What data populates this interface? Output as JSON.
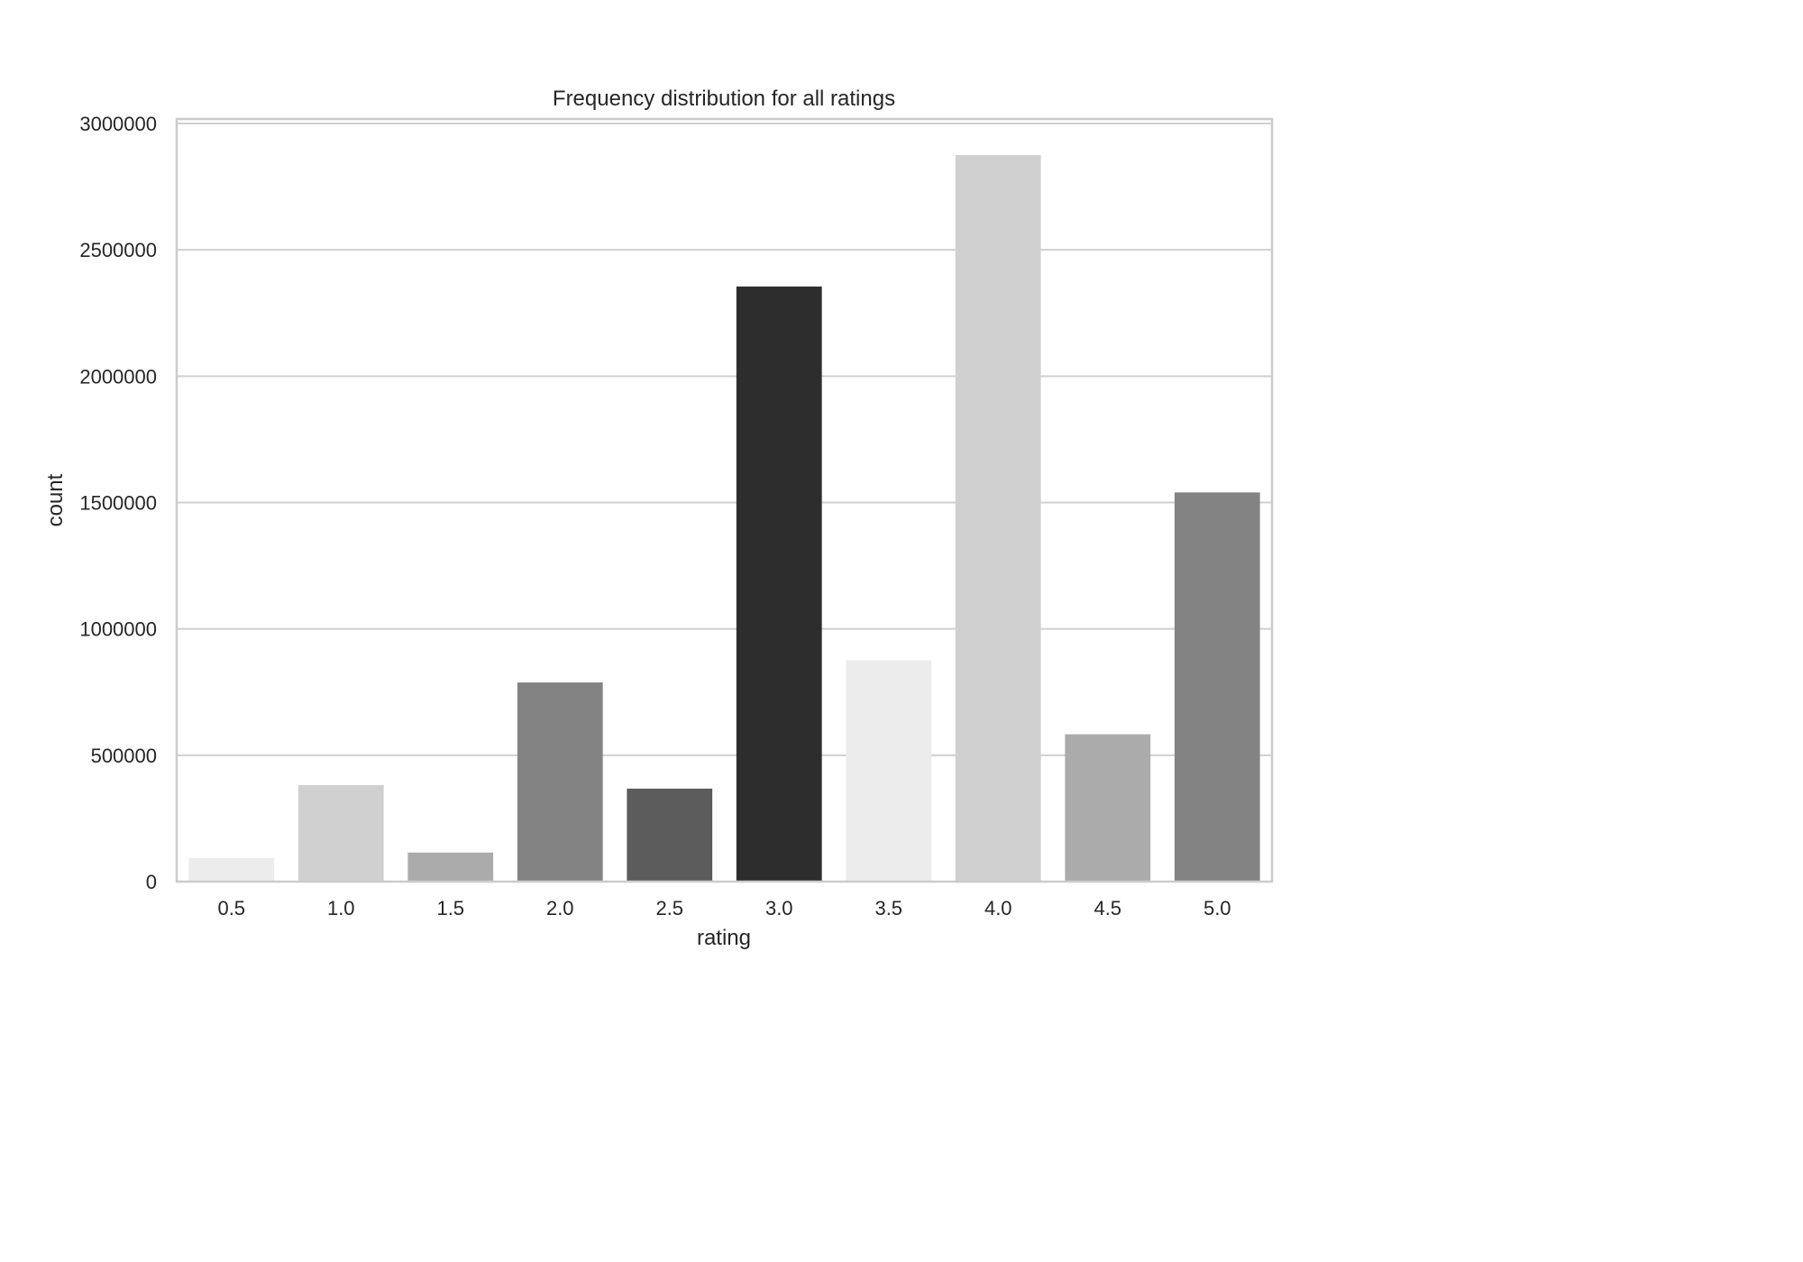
{
  "chart_data": {
    "type": "bar",
    "title": "Frequency distribution for all ratings",
    "xlabel": "rating",
    "ylabel": "count",
    "categories": [
      "0.5",
      "1.0",
      "1.5",
      "2.0",
      "2.5",
      "3.0",
      "3.5",
      "4.0",
      "4.5",
      "5.0"
    ],
    "values": [
      93000,
      382000,
      115000,
      788000,
      368000,
      2355000,
      876000,
      2875000,
      583000,
      1540000
    ],
    "colors": [
      "#ececec",
      "#d0d0d0",
      "#ababab",
      "#838383",
      "#5c5c5c",
      "#2d2d2d",
      "#ececec",
      "#d0d0d0",
      "#ababab",
      "#838383"
    ],
    "ylim": [
      0,
      3000000
    ],
    "yticks": [
      0,
      500000,
      1000000,
      1500000,
      2000000,
      2500000,
      3000000
    ],
    "ytick_labels": [
      "0",
      "500000",
      "1000000",
      "1500000",
      "2000000",
      "2500000",
      "3000000"
    ],
    "grid": true,
    "grid_color": "#d0d0d0",
    "legend": "none"
  }
}
